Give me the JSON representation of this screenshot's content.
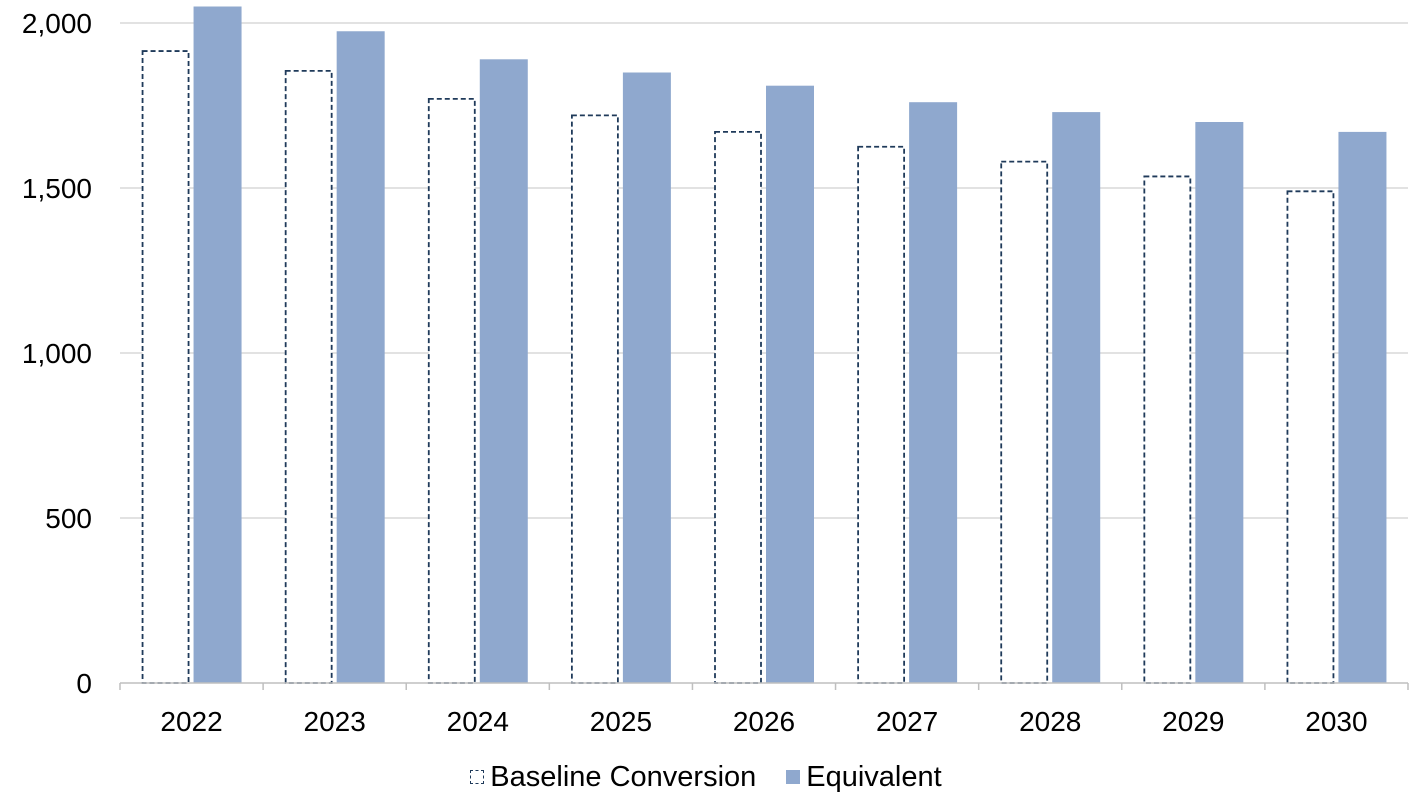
{
  "chart_data": {
    "type": "bar",
    "categories": [
      "2022",
      "2023",
      "2024",
      "2025",
      "2026",
      "2027",
      "2028",
      "2029",
      "2030"
    ],
    "series": [
      {
        "name": "Baseline Conversion",
        "values": [
          1915,
          1855,
          1770,
          1720,
          1670,
          1625,
          1580,
          1535,
          1490
        ],
        "color": "#1f3a5a",
        "style": "dashed-outline"
      },
      {
        "name": "Equivalent",
        "values": [
          2050,
          1975,
          1890,
          1850,
          1810,
          1760,
          1730,
          1700,
          1670
        ],
        "color": "#8fa8ce",
        "style": "solid"
      }
    ],
    "yticks": [
      "0",
      "500",
      "1,000",
      "1,500",
      "2,000"
    ],
    "ylim": [
      0,
      2000
    ],
    "grid": true,
    "legend_position": "bottom-center"
  }
}
